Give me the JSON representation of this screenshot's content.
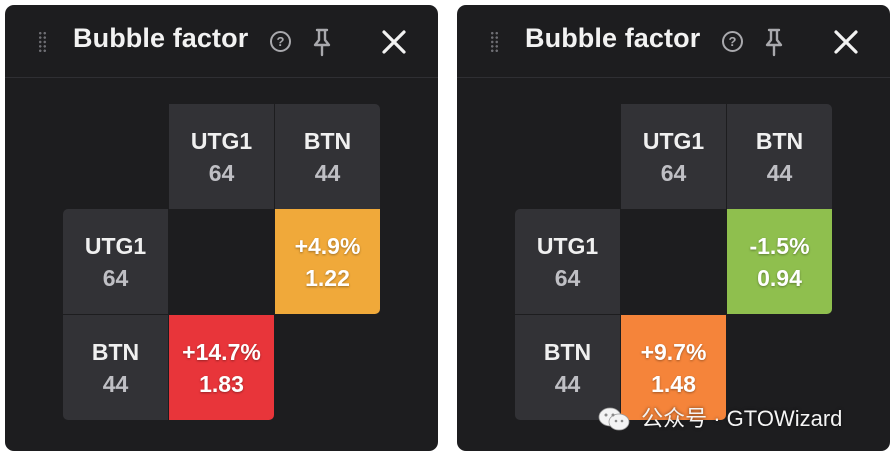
{
  "colors": {
    "panel_bg": "#1d1d1f",
    "label_cell_bg": "#323236",
    "orange": "#f0a93a",
    "red": "#e8353a",
    "green": "#8fbf4e",
    "light_orange": "#f5843a"
  },
  "panels": [
    {
      "header": {
        "title": "Bubble factor",
        "help_glyph": "?",
        "icons": [
          "drag-handle-icon",
          "help-icon",
          "pin-icon",
          "close-icon"
        ]
      },
      "columns": [
        {
          "name": "UTG1",
          "stack": "64"
        },
        {
          "name": "BTN",
          "stack": "44"
        }
      ],
      "rows": [
        {
          "name": "UTG1",
          "stack": "64"
        },
        {
          "name": "BTN",
          "stack": "44"
        }
      ],
      "values": [
        {
          "row": "UTG1",
          "col": "BTN",
          "pct": "+4.9%",
          "factor": "1.22",
          "color": "#f0a93a"
        },
        {
          "row": "BTN",
          "col": "UTG1",
          "pct": "+14.7%",
          "factor": "1.83",
          "color": "#e8353a"
        }
      ]
    },
    {
      "header": {
        "title": "Bubble factor",
        "help_glyph": "?",
        "icons": [
          "drag-handle-icon",
          "help-icon",
          "pin-icon",
          "close-icon"
        ]
      },
      "columns": [
        {
          "name": "UTG1",
          "stack": "64"
        },
        {
          "name": "BTN",
          "stack": "44"
        }
      ],
      "rows": [
        {
          "name": "UTG1",
          "stack": "64"
        },
        {
          "name": "BTN",
          "stack": "44"
        }
      ],
      "values": [
        {
          "row": "UTG1",
          "col": "BTN",
          "pct": "-1.5%",
          "factor": "0.94",
          "color": "#8fbf4e"
        },
        {
          "row": "BTN",
          "col": "UTG1",
          "pct": "+9.7%",
          "factor": "1.48",
          "color": "#f5843a"
        }
      ]
    }
  ],
  "watermark": {
    "text": "公众号 · GTOWizard",
    "icon": "wechat-logo-icon"
  }
}
